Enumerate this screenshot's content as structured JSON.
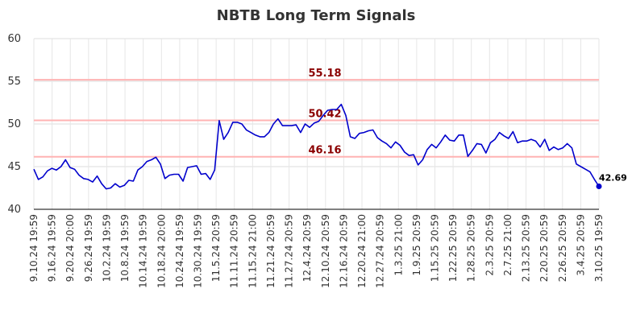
{
  "chart_data": {
    "type": "line",
    "title": "NBTB Long Term Signals",
    "xlabel": "",
    "ylabel": "",
    "ylim": [
      40,
      60
    ],
    "yticks": [
      40,
      45,
      50,
      55,
      60
    ],
    "grid": true,
    "line_color": "#0000cc",
    "reference_color": "#ffb3b3",
    "reference_label_color": "#8b0000",
    "reference_lines": [
      {
        "value": 55.18,
        "label": "55.18"
      },
      {
        "value": 50.42,
        "label": "50.42"
      },
      {
        "value": 46.16,
        "label": "46.16"
      }
    ],
    "last_point": {
      "value": 42.69,
      "label": "42.69"
    },
    "x_tick_labels": [
      "9.10.24 19:59",
      "9.16.24 19:59",
      "9.20.24 20:00",
      "9.26.24 19:59",
      "10.2.24 19:59",
      "10.8.24 19:59",
      "10.14.24 19:59",
      "10.18.24 20:00",
      "10.24.24 19:59",
      "10.30.24 19:59",
      "11.5.24 20:59",
      "11.11.24 20:59",
      "11.15.24 21:00",
      "11.21.24 20:59",
      "11.27.24 20:59",
      "12.4.24 20:59",
      "12.10.24 20:59",
      "12.16.24 20:59",
      "12.20.24 21:00",
      "12.27.24 20:59",
      "1.3.25 21:00",
      "1.9.25 20:59",
      "1.15.25 20:59",
      "1.22.25 20:59",
      "1.28.25 20:59",
      "2.3.25 20:59",
      "2.7.25 21:00",
      "2.13.25 20:59",
      "2.20.25 20:59",
      "2.26.25 20:59",
      "3.4.25 20:59",
      "3.10.25 19:59"
    ],
    "values": [
      44.7,
      43.5,
      43.8,
      44.5,
      44.8,
      44.6,
      45.0,
      45.8,
      44.9,
      44.7,
      44.0,
      43.6,
      43.5,
      43.2,
      43.9,
      43.0,
      42.4,
      42.5,
      43.0,
      42.6,
      42.8,
      43.4,
      43.3,
      44.6,
      45.0,
      45.6,
      45.8,
      46.1,
      45.3,
      43.6,
      44.0,
      44.1,
      44.1,
      43.3,
      44.9,
      45.0,
      45.1,
      44.1,
      44.2,
      43.5,
      44.6,
      50.4,
      48.2,
      49.0,
      50.2,
      50.2,
      50.0,
      49.3,
      49.0,
      48.7,
      48.5,
      48.5,
      49.0,
      50.0,
      50.6,
      49.8,
      49.8,
      49.8,
      49.9,
      49.0,
      50.0,
      49.6,
      50.1,
      50.3,
      51.0,
      51.6,
      51.7,
      51.7,
      52.3,
      51.0,
      48.5,
      48.3,
      48.9,
      49.0,
      49.2,
      49.3,
      48.4,
      48.0,
      47.7,
      47.2,
      47.9,
      47.5,
      46.7,
      46.3,
      46.4,
      45.2,
      45.8,
      47.0,
      47.6,
      47.2,
      47.9,
      48.7,
      48.1,
      48.0,
      48.7,
      48.7,
      46.2,
      46.9,
      47.7,
      47.6,
      46.6,
      47.8,
      48.2,
      49.0,
      48.6,
      48.3,
      49.1,
      47.8,
      48.0,
      48.0,
      48.2,
      48.0,
      47.3,
      48.2,
      46.9,
      47.3,
      47.0,
      47.2,
      47.7,
      47.2,
      45.3,
      45.0,
      44.7,
      44.4,
      43.5,
      42.69
    ]
  }
}
